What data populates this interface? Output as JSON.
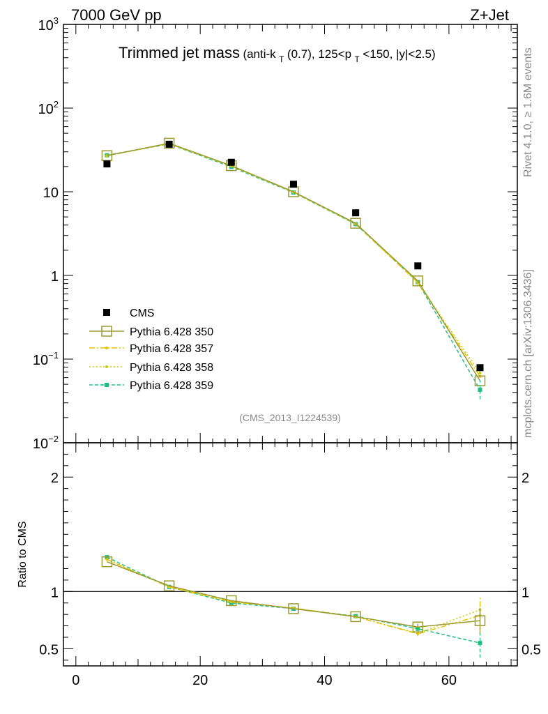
{
  "header": {
    "left_label": "7000 GeV pp",
    "right_label": "Z+Jet"
  },
  "side_labels": {
    "rivet": "Rivet 4.1.0, ≥ 1.6M events",
    "mcplots": "mcplots.cern.ch [arXiv:1306.3436]"
  },
  "chart_data": [
    {
      "type": "scatter",
      "panel": "main",
      "title_main": "Trimmed jet mass",
      "title_parts": [
        "(anti-k",
        "T",
        "(0.7), 125<p",
        "T",
        "<150, |y|<2.5)"
      ],
      "analysis_id": "(CMS_2013_I1224539)",
      "yscale": "log",
      "ylim": [
        0.01,
        1000
      ],
      "xlim": [
        -2,
        71
      ],
      "y_tick_labels": [
        {
          "value": 1000,
          "base": "10",
          "exp": "3"
        },
        {
          "value": 100,
          "base": "10",
          "exp": "2"
        },
        {
          "value": 10,
          "base": "10",
          "exp": ""
        },
        {
          "value": 1,
          "base": "1",
          "exp": ""
        },
        {
          "value": 0.1,
          "base": "10",
          "exp": "−1"
        },
        {
          "value": 0.01,
          "base": "10",
          "exp": "−2"
        }
      ],
      "x": [
        5,
        15,
        25,
        35,
        45,
        55,
        65
      ],
      "series": [
        {
          "name": "CMS",
          "color": "#000000",
          "marker": "filled-square",
          "line": "none",
          "values": [
            21.5,
            37.0,
            22.5,
            12.3,
            5.6,
            1.3,
            0.079
          ]
        },
        {
          "name": "Pythia 6.428 350",
          "color": "#9a9a33",
          "marker": "open-square",
          "line": "solid",
          "values": [
            27.0,
            38.0,
            20.5,
            10.0,
            4.2,
            0.86,
            0.055
          ]
        },
        {
          "name": "Pythia 6.428 357",
          "color": "#e8c100",
          "marker": "small-dot",
          "line": "dashdot",
          "values": [
            27.0,
            37.5,
            20.3,
            9.9,
            4.15,
            0.82,
            0.062
          ]
        },
        {
          "name": "Pythia 6.428 358",
          "color": "#cccc00",
          "marker": "small-dot",
          "line": "dotted",
          "values": [
            27.0,
            37.5,
            20.3,
            9.9,
            4.15,
            0.82,
            0.068
          ]
        },
        {
          "name": "Pythia 6.428 359",
          "color": "#1ec080",
          "marker": "small-square",
          "line": "dashed",
          "values": [
            27.3,
            37.2,
            19.8,
            9.8,
            4.1,
            0.83,
            0.043
          ]
        }
      ]
    },
    {
      "type": "line",
      "panel": "ratio",
      "ylabel": "Ratio to CMS",
      "ylim": [
        0.35,
        2.3
      ],
      "xlim": [
        -2,
        71
      ],
      "y_tick_labels": [
        "0.5",
        "1",
        "2"
      ],
      "y_ticks": [
        0.5,
        1,
        2
      ],
      "x_tick_labels": [
        "0",
        "20",
        "40",
        "60"
      ],
      "x_ticks": [
        0,
        20,
        40,
        60
      ],
      "reference": 1,
      "x": [
        5,
        15,
        25,
        35,
        45,
        55,
        65
      ],
      "series": [
        {
          "name": "Pythia 6.428 350",
          "color": "#9a9a33",
          "marker": "open-square",
          "line": "solid",
          "values": [
            1.26,
            1.05,
            0.92,
            0.85,
            0.78,
            0.69,
            0.745
          ],
          "err": [
            0,
            0,
            0,
            0,
            0,
            0.03,
            0.11
          ]
        },
        {
          "name": "Pythia 6.428 357",
          "color": "#e8c100",
          "marker": "small-dot",
          "line": "dashdot",
          "values": [
            1.28,
            1.04,
            0.91,
            0.855,
            0.78,
            0.63,
            0.79
          ],
          "err": [
            0,
            0,
            0,
            0,
            0,
            0.02,
            0.12
          ]
        },
        {
          "name": "Pythia 6.428 358",
          "color": "#cccc00",
          "marker": "small-dot",
          "line": "dotted",
          "values": [
            1.28,
            1.04,
            0.91,
            0.855,
            0.78,
            0.635,
            0.84
          ],
          "err": [
            0,
            0,
            0,
            0,
            0,
            0.02,
            0.12
          ]
        },
        {
          "name": "Pythia 6.428 359",
          "color": "#1ec080",
          "marker": "small-square",
          "line": "dashed",
          "values": [
            1.3,
            1.04,
            0.9,
            0.85,
            0.785,
            0.675,
            0.55
          ],
          "err": [
            0,
            0,
            0,
            0,
            0,
            0.03,
            0.13
          ]
        }
      ]
    }
  ]
}
